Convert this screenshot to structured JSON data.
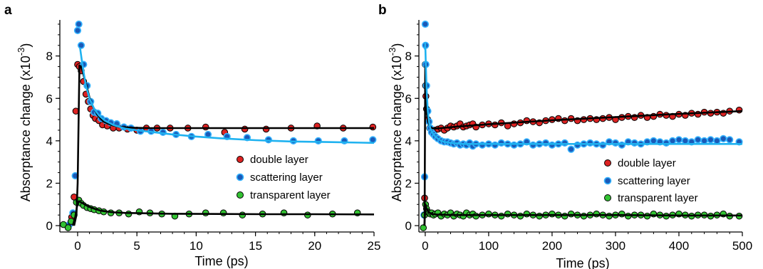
{
  "colors": {
    "double": "#dd2222",
    "scattering_fill": "#1a5ab8",
    "scattering_edge": "#35b3ff",
    "transparent": "#33c233",
    "fit_black": "#000000",
    "fit_blue": "#1fb2f0"
  },
  "chart_data": [
    {
      "panel": "a",
      "type": "scatter",
      "xlabel": "Time (ps)",
      "ylabel": "Absorptance change (x10",
      "ylabel_exp": "-3",
      "ylabel_close": ")",
      "xlim": [
        -1.5,
        25
      ],
      "ylim": [
        -0.3,
        9.7
      ],
      "xticks": [
        0,
        5,
        10,
        15,
        20,
        25
      ],
      "yticks": [
        0,
        2,
        4,
        6,
        8
      ],
      "legend_position": "right-middle",
      "series": [
        {
          "key": "double",
          "name": "double layer",
          "x": [
            -0.5,
            -0.3,
            -0.15,
            0,
            0.15,
            0.3,
            0.5,
            0.7,
            0.9,
            1.1,
            1.3,
            1.5,
            1.8,
            2.1,
            2.5,
            3,
            3.5,
            4.2,
            5,
            5.8,
            6.7,
            7.8,
            9.3,
            10.8,
            12.4,
            14.1,
            15.9,
            18,
            20.2,
            22.4,
            24.9
          ],
          "y": [
            0.4,
            1.35,
            5.4,
            7.6,
            7.5,
            7.3,
            6.8,
            6.2,
            5.85,
            5.5,
            5.2,
            5.05,
            4.95,
            4.75,
            4.7,
            4.6,
            4.6,
            4.55,
            4.5,
            4.6,
            4.6,
            4.6,
            4.6,
            4.65,
            4.4,
            4.55,
            4.55,
            4.6,
            4.7,
            4.6,
            4.65
          ]
        },
        {
          "key": "scattering",
          "name": "scattering layer",
          "x": [
            -0.7,
            -0.4,
            -0.2,
            0,
            0.1,
            0.3,
            0.5,
            0.8,
            1.1,
            1.4,
            1.7,
            2.0,
            2.4,
            2.8,
            3.3,
            3.9,
            4.5,
            5.3,
            6.2,
            7.2,
            8.3,
            9.6,
            11.0,
            12.6,
            14.3,
            16.1,
            18.2,
            20.3,
            22.5,
            24.9
          ],
          "y": [
            0.05,
            0.6,
            2.35,
            9.2,
            9.5,
            8.5,
            7.6,
            6.6,
            5.85,
            5.35,
            5.3,
            5.05,
            4.95,
            4.85,
            4.8,
            4.65,
            4.6,
            4.45,
            4.45,
            4.4,
            4.3,
            4.2,
            4.3,
            4.2,
            4.15,
            4.05,
            4.0,
            4.0,
            4.0,
            4.05
          ]
        },
        {
          "key": "transparent",
          "name": "transparent layer",
          "x": [
            -1.2,
            -0.8,
            -0.55,
            -0.3,
            -0.1,
            0.1,
            0.3,
            0.5,
            0.8,
            1.1,
            1.4,
            1.8,
            2.2,
            2.8,
            3.5,
            4.3,
            5.2,
            6.1,
            7.1,
            8.2,
            9.4,
            10.8,
            12.3,
            13.9,
            15.6,
            17.4,
            19.4,
            21.5,
            23.6
          ],
          "y": [
            0.05,
            -0.1,
            0.2,
            0.5,
            1.1,
            1.2,
            1.05,
            0.95,
            0.85,
            0.8,
            0.75,
            0.7,
            0.65,
            0.6,
            0.6,
            0.55,
            0.65,
            0.6,
            0.55,
            0.45,
            0.55,
            0.6,
            0.6,
            0.5,
            0.55,
            0.6,
            0.5,
            0.55,
            0.6
          ]
        }
      ],
      "fits": [
        {
          "key": "double",
          "x": [
            -0.3,
            -0.1,
            0,
            0.15,
            0.3,
            0.5,
            0.75,
            1,
            1.3,
            1.7,
            2.2,
            2.8,
            3.5,
            4.5,
            6,
            8,
            10,
            15,
            20,
            25
          ],
          "y": [
            0,
            0.5,
            2.0,
            7.55,
            7.5,
            7.1,
            6.6,
            6.05,
            5.6,
            5.2,
            4.9,
            4.75,
            4.66,
            4.62,
            4.6,
            4.6,
            4.6,
            4.6,
            4.6,
            4.6
          ]
        },
        {
          "key": "scattering",
          "x": [
            0.2,
            0.35,
            0.5,
            0.7,
            1,
            1.4,
            1.8,
            2.3,
            3,
            4,
            5,
            6.5,
            8,
            10,
            12,
            15,
            18,
            21,
            25
          ],
          "y": [
            8.4,
            7.8,
            7.25,
            6.6,
            6.0,
            5.5,
            5.2,
            4.95,
            4.75,
            4.58,
            4.5,
            4.4,
            4.3,
            4.2,
            4.12,
            4.03,
            3.97,
            3.94,
            3.9
          ]
        },
        {
          "key": "transparent",
          "x": [
            -0.4,
            -0.2,
            -0.05,
            0.1,
            0.3,
            0.6,
            1,
            1.5,
            2,
            3,
            4,
            6,
            8,
            12,
            16,
            20,
            25
          ],
          "y": [
            0,
            0.4,
            0.9,
            1.15,
            1.1,
            1.0,
            0.88,
            0.78,
            0.7,
            0.63,
            0.6,
            0.58,
            0.56,
            0.55,
            0.54,
            0.54,
            0.53
          ]
        }
      ]
    },
    {
      "panel": "b",
      "type": "scatter",
      "xlabel": "Time (ps)",
      "ylabel": "Absorptance change (x10",
      "ylabel_exp": "-3",
      "ylabel_close": ")",
      "xlim": [
        -10,
        500
      ],
      "ylim": [
        -0.3,
        9.7
      ],
      "xticks": [
        0,
        100,
        200,
        300,
        400,
        500
      ],
      "yticks": [
        0,
        2,
        4,
        6,
        8
      ],
      "legend_position": "right-middle",
      "series": [
        {
          "key": "double",
          "name": "double layer",
          "x": [
            -1,
            0,
            0.5,
            1,
            2,
            4,
            7,
            10,
            15,
            20,
            25,
            30,
            35,
            40,
            45,
            50,
            55,
            60,
            65,
            70,
            75,
            80,
            90,
            100,
            110,
            120,
            130,
            140,
            150,
            160,
            170,
            180,
            190,
            200,
            210,
            220,
            230,
            240,
            250,
            260,
            270,
            280,
            290,
            300,
            310,
            320,
            330,
            340,
            350,
            360,
            370,
            380,
            390,
            400,
            410,
            420,
            430,
            440,
            450,
            460,
            470,
            480,
            495
          ],
          "y": [
            1.3,
            7.6,
            6.6,
            6.1,
            5.5,
            5.0,
            4.6,
            4.45,
            4.5,
            4.55,
            4.6,
            4.5,
            4.6,
            4.7,
            4.65,
            4.7,
            4.8,
            4.65,
            4.7,
            4.75,
            4.8,
            4.65,
            4.75,
            4.8,
            4.75,
            4.85,
            4.7,
            4.8,
            4.85,
            4.95,
            4.9,
            4.85,
            4.95,
            5.0,
            5.05,
            4.95,
            5.05,
            4.95,
            5.0,
            5.05,
            5.0,
            5.05,
            5.1,
            5.0,
            5.1,
            5.15,
            5.1,
            5.2,
            5.1,
            5.15,
            5.25,
            5.2,
            5.15,
            5.25,
            5.2,
            5.3,
            5.25,
            5.35,
            5.3,
            5.35,
            5.3,
            5.4,
            5.45
          ]
        },
        {
          "key": "scattering",
          "name": "scattering layer",
          "x": [
            -2,
            -1,
            0,
            0.5,
            1,
            2,
            4,
            6,
            8,
            10,
            13,
            16,
            20,
            25,
            30,
            35,
            40,
            45,
            50,
            55,
            60,
            65,
            70,
            75,
            80,
            90,
            100,
            110,
            120,
            130,
            140,
            150,
            160,
            170,
            180,
            190,
            200,
            210,
            220,
            230,
            240,
            250,
            260,
            270,
            280,
            290,
            300,
            310,
            320,
            330,
            340,
            350,
            360,
            370,
            380,
            390,
            400,
            410,
            420,
            430,
            440,
            450,
            460,
            470,
            480,
            495
          ],
          "y": [
            0.5,
            2.3,
            9.5,
            8.5,
            7.6,
            6.6,
            5.4,
            4.9,
            4.6,
            4.4,
            4.3,
            4.2,
            4.1,
            4.0,
            3.95,
            3.95,
            3.9,
            3.85,
            3.9,
            3.8,
            3.85,
            3.8,
            3.9,
            3.75,
            3.85,
            3.8,
            3.85,
            3.8,
            3.9,
            3.85,
            3.8,
            3.85,
            3.95,
            3.8,
            3.85,
            3.9,
            3.8,
            3.85,
            3.9,
            3.6,
            3.8,
            3.85,
            3.9,
            3.85,
            3.8,
            3.95,
            3.9,
            3.8,
            3.95,
            3.9,
            3.85,
            3.95,
            4.0,
            3.95,
            3.9,
            4.0,
            4.05,
            4.0,
            3.95,
            4.05,
            4.0,
            4.05,
            4.0,
            4.1,
            4.05,
            3.95
          ]
        },
        {
          "key": "transparent",
          "name": "transparent layer",
          "x": [
            -3,
            -1,
            0.5,
            2,
            4,
            6,
            8,
            10,
            13,
            16,
            20,
            25,
            30,
            35,
            40,
            45,
            50,
            55,
            60,
            65,
            70,
            75,
            80,
            90,
            100,
            110,
            120,
            130,
            140,
            150,
            160,
            170,
            180,
            190,
            200,
            210,
            220,
            230,
            240,
            250,
            260,
            270,
            280,
            290,
            300,
            310,
            320,
            330,
            340,
            350,
            360,
            370,
            380,
            390,
            400,
            410,
            420,
            430,
            440,
            450,
            460,
            470,
            480,
            495
          ],
          "y": [
            -0.1,
            0.5,
            1.0,
            0.8,
            0.65,
            0.6,
            0.55,
            0.6,
            0.5,
            0.55,
            0.6,
            0.45,
            0.55,
            0.5,
            0.6,
            0.45,
            0.55,
            0.5,
            0.45,
            0.6,
            0.5,
            0.55,
            0.45,
            0.5,
            0.55,
            0.5,
            0.45,
            0.55,
            0.5,
            0.45,
            0.55,
            0.5,
            0.45,
            0.5,
            0.55,
            0.5,
            0.45,
            0.55,
            0.5,
            0.45,
            0.5,
            0.55,
            0.5,
            0.45,
            0.5,
            0.55,
            0.45,
            0.5,
            0.5,
            0.45,
            0.55,
            0.5,
            0.45,
            0.5,
            0.55,
            0.5,
            0.45,
            0.5,
            0.5,
            0.45,
            0.5,
            0.55,
            0.45,
            0.45
          ]
        }
      ],
      "fits": [
        {
          "key": "double",
          "x": [
            -1,
            0,
            1,
            2,
            4,
            7,
            10,
            15,
            25,
            50,
            100,
            200,
            300,
            400,
            500
          ],
          "y": [
            0,
            7.5,
            6.2,
            5.4,
            4.95,
            4.7,
            4.6,
            4.58,
            4.6,
            4.67,
            4.78,
            4.97,
            5.12,
            5.27,
            5.4
          ]
        },
        {
          "key": "scattering",
          "x": [
            -0.5,
            0,
            1,
            2,
            4,
            6,
            8,
            10,
            13,
            16,
            20,
            25,
            30,
            40,
            60,
            100,
            200,
            300,
            400,
            500
          ],
          "y": [
            8.3,
            8.6,
            7.5,
            6.5,
            5.4,
            4.9,
            4.6,
            4.45,
            4.3,
            4.2,
            4.1,
            4.0,
            3.95,
            3.9,
            3.85,
            3.85,
            3.85,
            3.85,
            3.85,
            3.85
          ]
        },
        {
          "key": "transparent",
          "x": [
            -1.5,
            -0.5,
            0.5,
            2,
            5,
            10,
            20,
            50,
            100,
            200,
            300,
            400,
            500
          ],
          "y": [
            0,
            0.5,
            1.0,
            0.8,
            0.65,
            0.55,
            0.52,
            0.5,
            0.5,
            0.5,
            0.5,
            0.48,
            0.48
          ]
        }
      ]
    }
  ]
}
